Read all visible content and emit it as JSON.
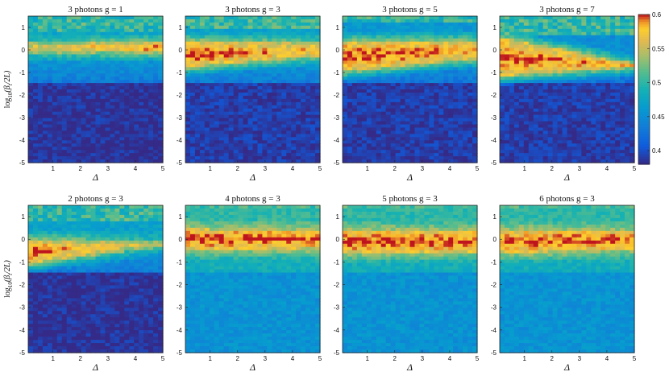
{
  "chart_data": {
    "type": "heatmap",
    "colormap": "parula",
    "colorbar": {
      "min": 0.38,
      "max": 0.6,
      "ticks": [
        0.4,
        0.45,
        0.5,
        0.55,
        0.6
      ],
      "tick_labels": [
        "0.4",
        "0.45",
        "0.5",
        "0.55",
        "0.6"
      ]
    },
    "x_range": [
      0.1,
      5
    ],
    "y_range": [
      -5,
      1.5
    ],
    "x_ticks": [
      1,
      2,
      3,
      4,
      5
    ],
    "y_ticks": [
      1,
      0,
      -1,
      -2,
      -3,
      -4,
      -5
    ],
    "x_tick_labels": [
      "1",
      "2",
      "3",
      "4",
      "5"
    ],
    "y_tick_labels": [
      "1",
      "0",
      "-1",
      "-2",
      "-3",
      "-4",
      "-5"
    ],
    "xlabel": "Δ",
    "ylabel_parts": {
      "base": "log",
      "sub": "10",
      "arg": "(β",
      "argsub": "t",
      "close": "/2L)"
    },
    "panels": [
      {
        "title": "3 photons g = 1",
        "photons": 3,
        "g": 1,
        "band_center_start": 0.1,
        "band_center_end": 0.1,
        "band_half_width_start": 0.25,
        "band_half_width_end": 0.2,
        "peak_start": 0.56,
        "peak_end": 0.6,
        "secondary_band": 0.7,
        "background": 0.385,
        "background_top": 0.47
      },
      {
        "title": "3 photons g = 3",
        "photons": 3,
        "g": 3,
        "band_center_start": -0.2,
        "band_center_end": 0.0,
        "band_half_width_start": 0.55,
        "band_half_width_end": 0.3,
        "peak_start": 0.6,
        "peak_end": 0.58,
        "secondary_band": 0.8,
        "background": 0.39,
        "background_top": 0.47
      },
      {
        "title": "3 photons g = 5",
        "photons": 3,
        "g": 5,
        "band_center_start": -0.3,
        "band_center_end": 0.0,
        "band_half_width_start": 0.65,
        "band_half_width_end": 0.4,
        "peak_start": 0.6,
        "peak_end": 0.59,
        "secondary_band": 1.0,
        "background": 0.39,
        "background_top": 0.46
      },
      {
        "title": "3 photons g = 7",
        "photons": 3,
        "g": 7,
        "band_center_start": -0.3,
        "band_center_end": -0.7,
        "band_half_width_start": 0.85,
        "band_half_width_end": 0.1,
        "peak_start": 0.6,
        "peak_end": 0.58,
        "secondary_band": 0.55,
        "background": 0.39,
        "background_top": 0.45
      },
      {
        "title": "2 photons g = 3",
        "photons": 2,
        "g": 3,
        "band_center_start": -0.55,
        "band_center_end": -0.2,
        "band_half_width_start": 0.5,
        "band_half_width_end": 0.15,
        "peak_start": 0.6,
        "peak_end": 0.55,
        "secondary_band": 0.6,
        "background": 0.385,
        "background_top": 0.47
      },
      {
        "title": "4 photons g = 3",
        "photons": 4,
        "g": 3,
        "band_center_start": 0.0,
        "band_center_end": 0.0,
        "band_half_width_start": 0.45,
        "band_half_width_end": 0.4,
        "peak_start": 0.6,
        "peak_end": 0.6,
        "secondary_band": 1.2,
        "background": 0.455,
        "background_top": 0.5
      },
      {
        "title": "5 photons g = 3",
        "photons": 5,
        "g": 3,
        "band_center_start": -0.1,
        "band_center_end": -0.1,
        "band_half_width_start": 0.5,
        "band_half_width_end": 0.45,
        "peak_start": 0.6,
        "peak_end": 0.6,
        "secondary_band": 1.2,
        "background": 0.455,
        "background_top": 0.5
      },
      {
        "title": "6 photons g = 3",
        "photons": 6,
        "g": 3,
        "band_center_start": -0.1,
        "band_center_end": -0.05,
        "band_half_width_start": 0.5,
        "band_half_width_end": 0.4,
        "peak_start": 0.6,
        "peak_end": 0.6,
        "secondary_band": 1.2,
        "background": 0.455,
        "background_top": 0.5
      }
    ]
  }
}
